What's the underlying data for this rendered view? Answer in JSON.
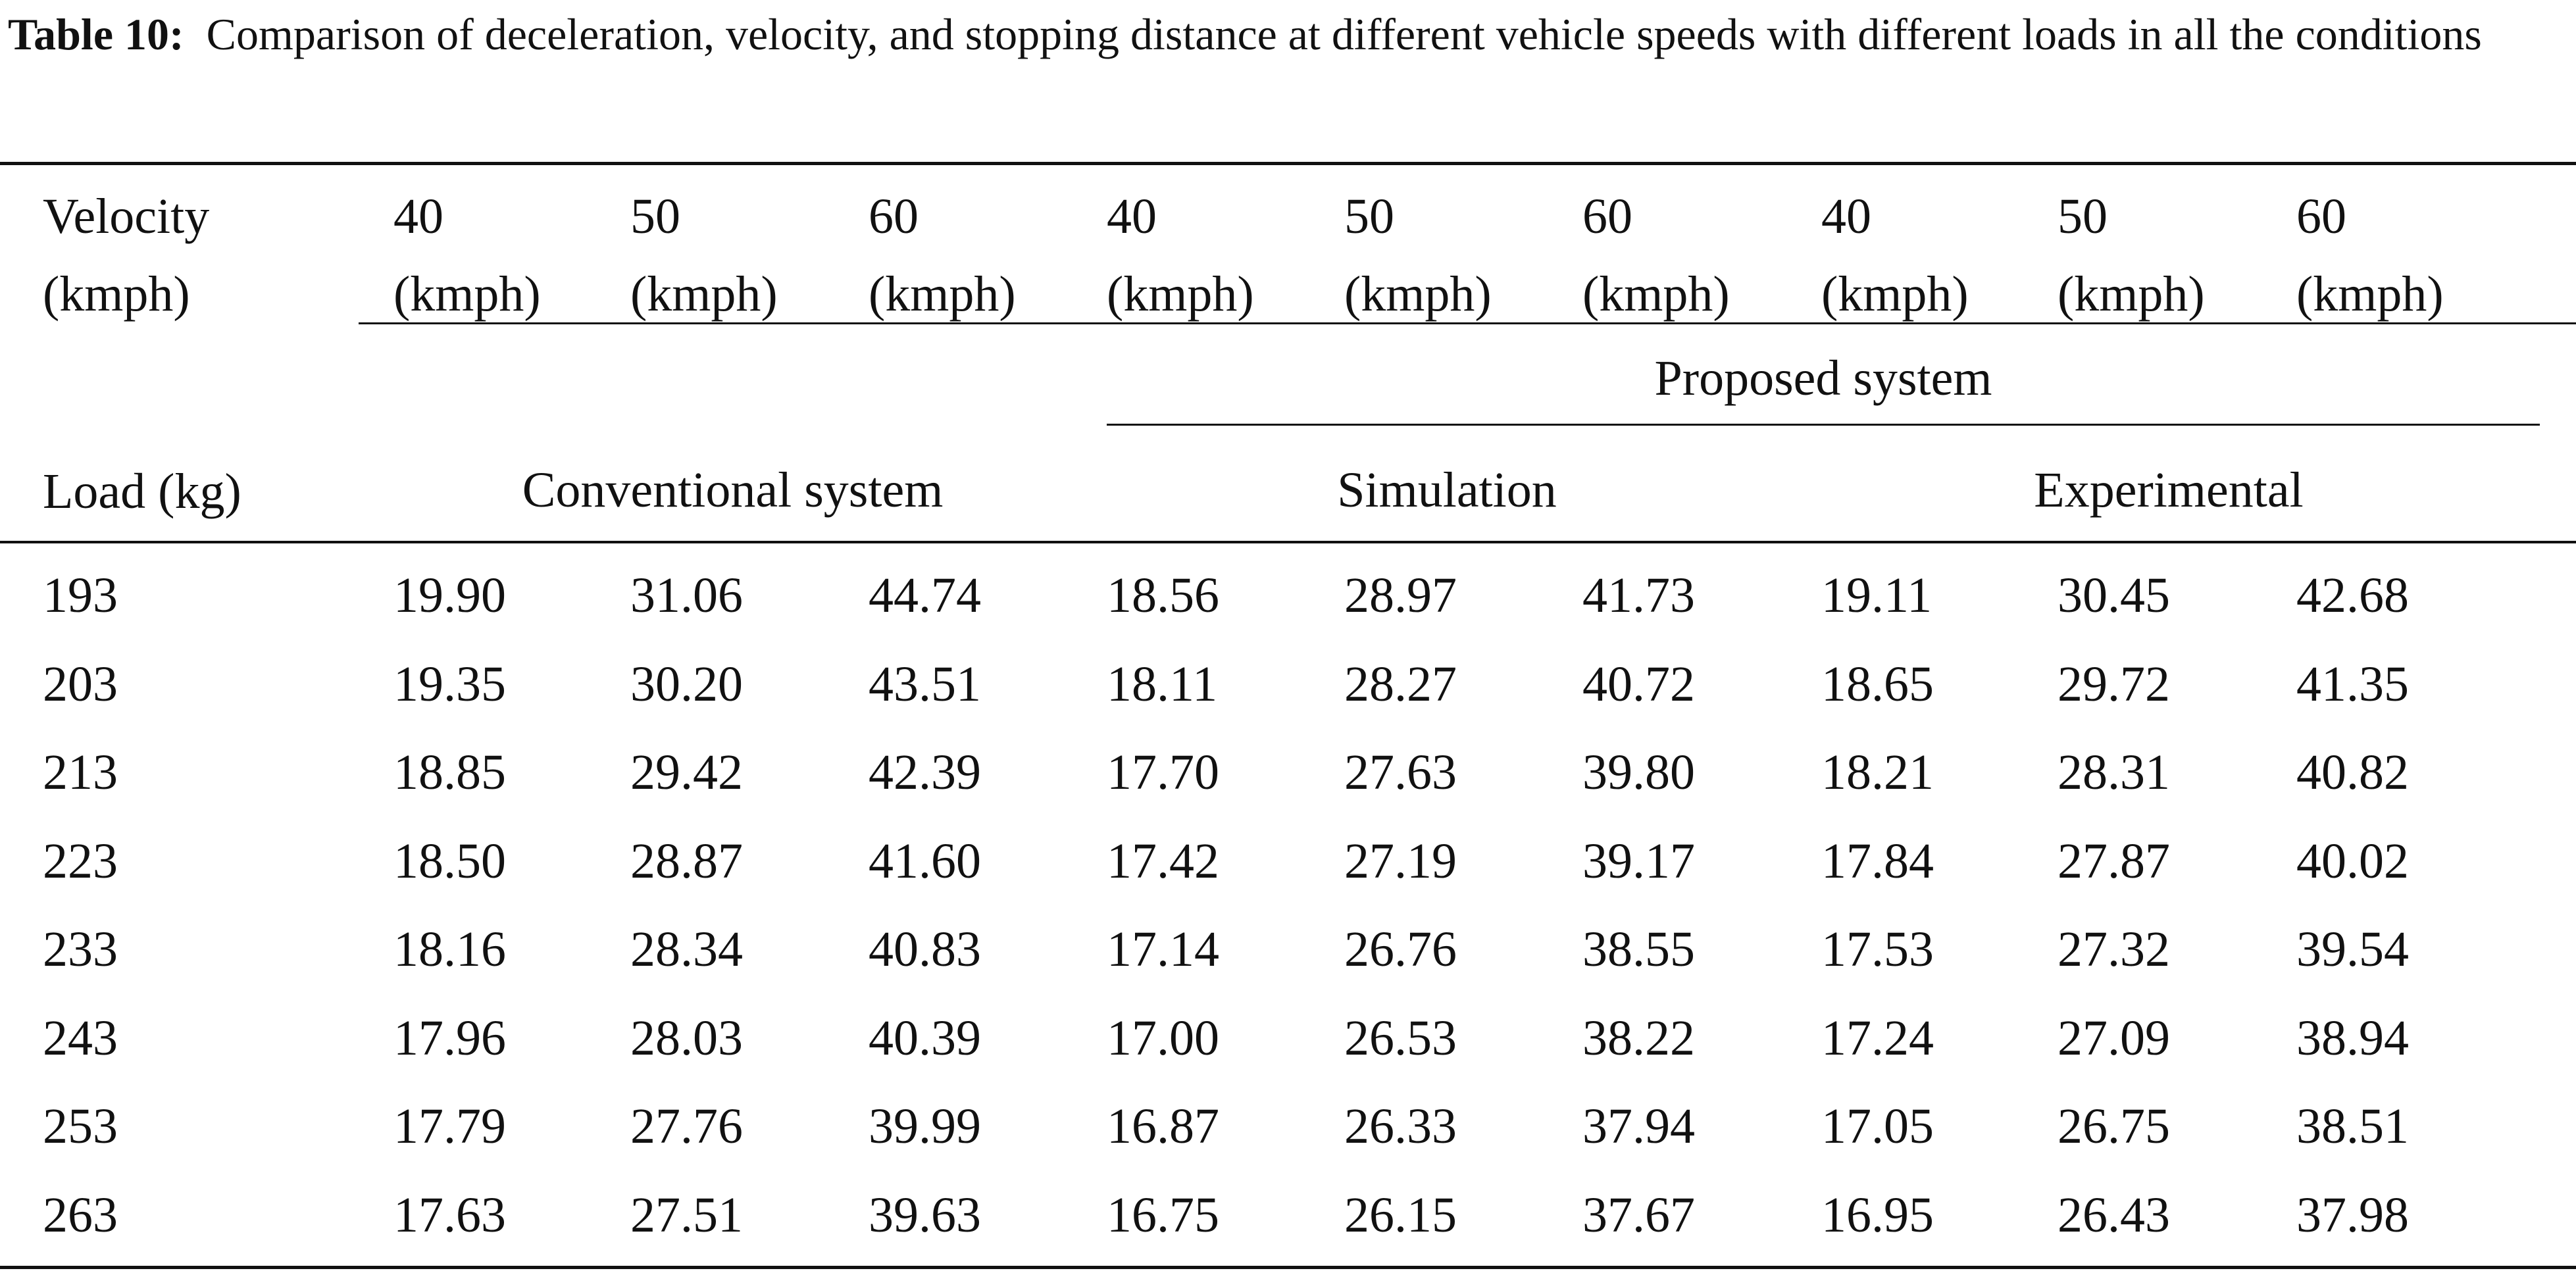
{
  "caption": {
    "label": "Table 10:",
    "text": "Comparison of deceleration, velocity, and stopping distance at different vehicle speeds with different loads in all the conditions"
  },
  "header": {
    "velocity_label": [
      "Velocity",
      "(kmph)"
    ],
    "speeds": [
      [
        "40",
        "(kmph)"
      ],
      [
        "50",
        "(kmph)"
      ],
      [
        "60",
        "(kmph)"
      ],
      [
        "40",
        "(kmph)"
      ],
      [
        "50",
        "(kmph)"
      ],
      [
        "60",
        "(kmph)"
      ],
      [
        "40",
        "(kmph)"
      ],
      [
        "50",
        "(kmph)"
      ],
      [
        "60",
        "(kmph)"
      ]
    ],
    "load_label": "Load (kg)",
    "proposed_label": "Proposed system",
    "conventional_label": "Conventional system",
    "simulation_label": "Simulation",
    "experimental_label": "Experimental"
  },
  "rows": [
    [
      "193",
      "19.90",
      "31.06",
      "44.74",
      "18.56",
      "28.97",
      "41.73",
      "19.11",
      "30.45",
      "42.68"
    ],
    [
      "203",
      "19.35",
      "30.20",
      "43.51",
      "18.11",
      "28.27",
      "40.72",
      "18.65",
      "29.72",
      "41.35"
    ],
    [
      "213",
      "18.85",
      "29.42",
      "42.39",
      "17.70",
      "27.63",
      "39.80",
      "18.21",
      "28.31",
      "40.82"
    ],
    [
      "223",
      "18.50",
      "28.87",
      "41.60",
      "17.42",
      "27.19",
      "39.17",
      "17.84",
      "27.87",
      "40.02"
    ],
    [
      "233",
      "18.16",
      "28.34",
      "40.83",
      "17.14",
      "26.76",
      "38.55",
      "17.53",
      "27.32",
      "39.54"
    ],
    [
      "243",
      "17.96",
      "28.03",
      "40.39",
      "17.00",
      "26.53",
      "38.22",
      "17.24",
      "27.09",
      "38.94"
    ],
    [
      "253",
      "17.79",
      "27.76",
      "39.99",
      "16.87",
      "26.33",
      "37.94",
      "17.05",
      "26.75",
      "38.51"
    ],
    [
      "263",
      "17.63",
      "27.51",
      "39.63",
      "16.75",
      "26.15",
      "37.67",
      "16.95",
      "26.43",
      "37.98"
    ]
  ]
}
